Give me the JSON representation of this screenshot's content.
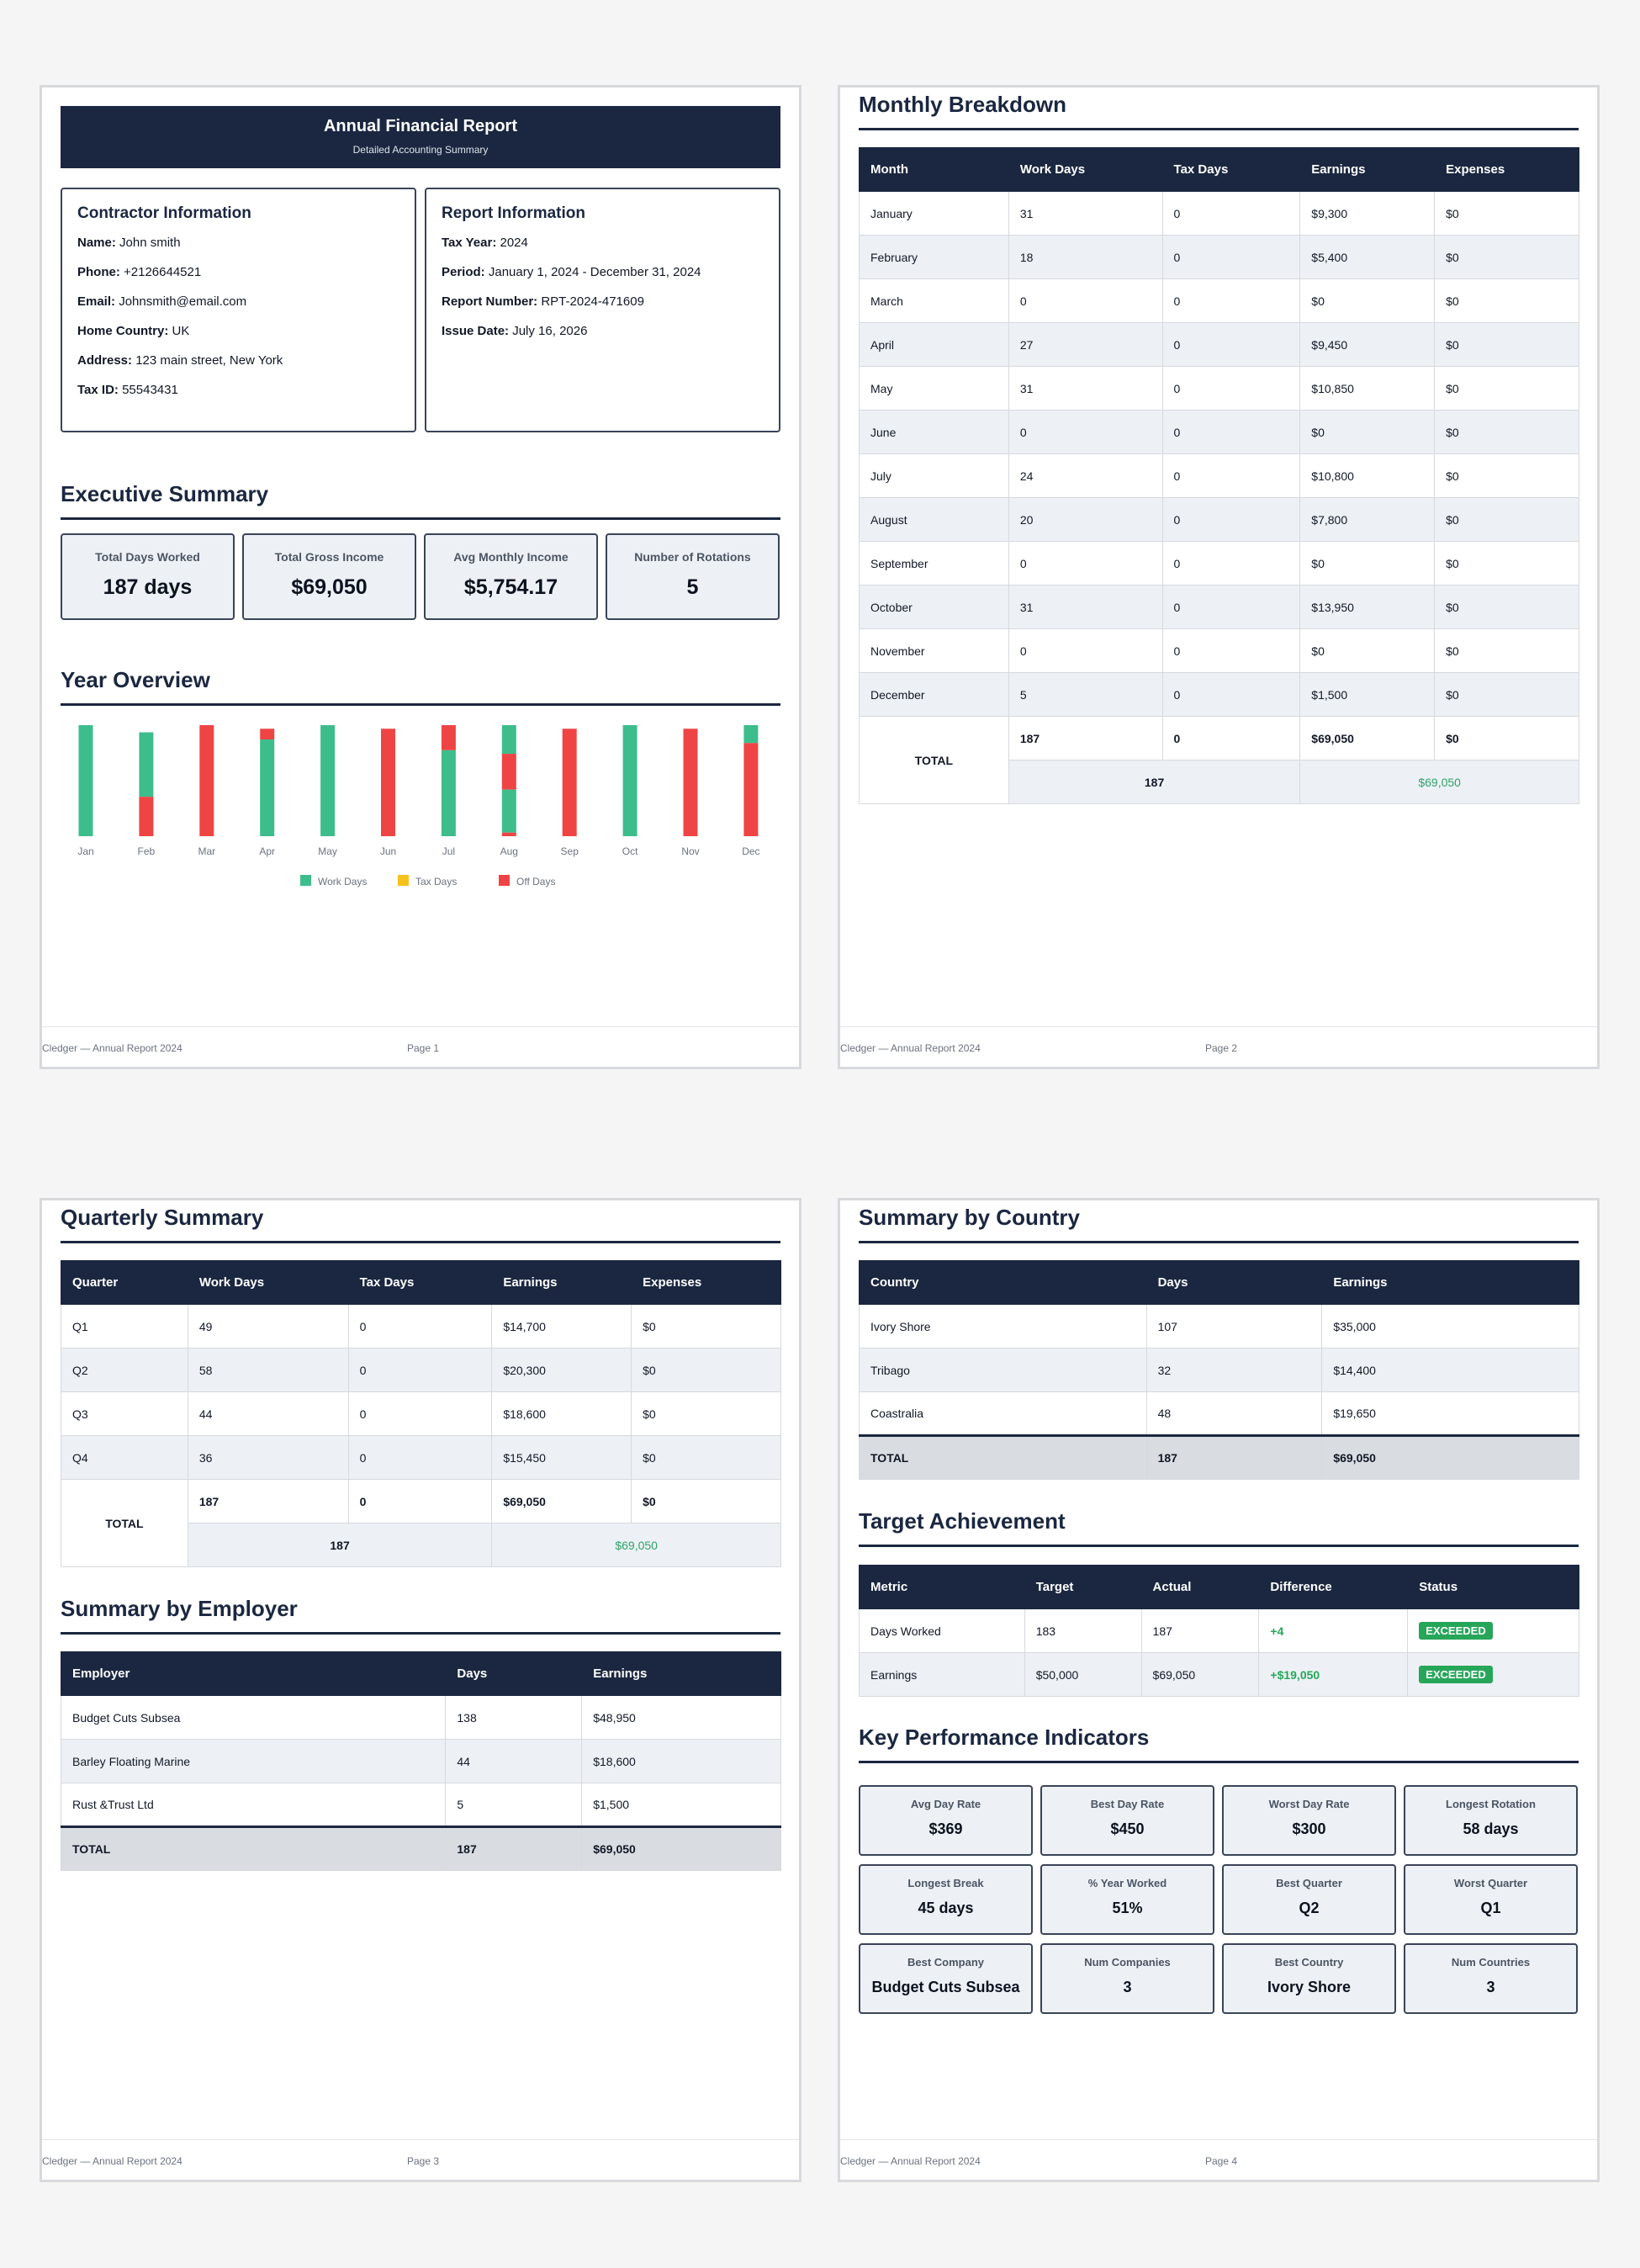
{
  "footer": {
    "brand": "Cledger — Annual Report 2024",
    "pages": [
      "Page 1",
      "Page 2",
      "Page 3",
      "Page 4"
    ]
  },
  "header": {
    "title": "Annual Financial Report",
    "subtitle": "Detailed Accounting Summary"
  },
  "contractor": {
    "title": "Contractor Information",
    "rows": [
      {
        "label": "Name:",
        "value": "John smith"
      },
      {
        "label": "Phone:",
        "value": "+2126644521"
      },
      {
        "label": "Email:",
        "value": "Johnsmith@email.com"
      },
      {
        "label": "Home Country:",
        "value": "UK"
      },
      {
        "label": "Address:",
        "value": "123 main street, New York"
      },
      {
        "label": "Tax ID:",
        "value": "55543431"
      }
    ]
  },
  "report": {
    "title": "Report Information",
    "rows": [
      {
        "label": "Tax Year:",
        "value": "2024"
      },
      {
        "label": "Period:",
        "value": "January 1, 2024 - December 31, 2024"
      },
      {
        "label": "Report Number:",
        "value": "RPT-2024-471609"
      },
      {
        "label": "Issue Date:",
        "value": "July 16, 2026"
      }
    ]
  },
  "executive": {
    "title": "Executive Summary",
    "cards": [
      {
        "label": "Total Days Worked",
        "value": "187 days"
      },
      {
        "label": "Total Gross Income",
        "value": "$69,050"
      },
      {
        "label": "Avg Monthly Income",
        "value": "$5,754.17"
      },
      {
        "label": "Number of Rotations",
        "value": "5"
      }
    ]
  },
  "overview": {
    "title": "Year Overview"
  },
  "chart_data": {
    "type": "bar",
    "stacked": true,
    "categories": [
      "Jan",
      "Feb",
      "Mar",
      "Apr",
      "May",
      "Jun",
      "Jul",
      "Aug",
      "Sep",
      "Oct",
      "Nov",
      "Dec"
    ],
    "segments": [
      [
        {
          "kind": "work",
          "days": 31
        }
      ],
      [
        {
          "kind": "work",
          "days": 18
        },
        {
          "kind": "off",
          "days": 11
        }
      ],
      [
        {
          "kind": "off",
          "days": 31
        }
      ],
      [
        {
          "kind": "off",
          "days": 3
        },
        {
          "kind": "work",
          "days": 27
        }
      ],
      [
        {
          "kind": "work",
          "days": 31
        }
      ],
      [
        {
          "kind": "off",
          "days": 30
        }
      ],
      [
        {
          "kind": "off",
          "days": 7
        },
        {
          "kind": "work",
          "days": 24
        }
      ],
      [
        {
          "kind": "work",
          "days": 8
        },
        {
          "kind": "off",
          "days": 10
        },
        {
          "kind": "work",
          "days": 12
        },
        {
          "kind": "off",
          "days": 1
        }
      ],
      [
        {
          "kind": "off",
          "days": 30
        }
      ],
      [
        {
          "kind": "work",
          "days": 31
        }
      ],
      [
        {
          "kind": "off",
          "days": 30
        }
      ],
      [
        {
          "kind": "work",
          "days": 5
        },
        {
          "kind": "off",
          "days": 26
        }
      ]
    ],
    "legend": [
      {
        "name": "Work Days",
        "color": "#3dbd8c"
      },
      {
        "name": "Tax Days",
        "color": "#f5c21b"
      },
      {
        "name": "Off Days",
        "color": "#ef4444"
      }
    ],
    "ylim": [
      0,
      31
    ],
    "legend_position": "bottom"
  },
  "monthly": {
    "title": "Monthly Breakdown",
    "headers": [
      "Month",
      "Work Days",
      "Tax Days",
      "Earnings",
      "Expenses"
    ],
    "rows": [
      [
        "January",
        "31",
        "0",
        "$9,300",
        "$0"
      ],
      [
        "February",
        "18",
        "0",
        "$5,400",
        "$0"
      ],
      [
        "March",
        "0",
        "0",
        "$0",
        "$0"
      ],
      [
        "April",
        "27",
        "0",
        "$9,450",
        "$0"
      ],
      [
        "May",
        "31",
        "0",
        "$10,850",
        "$0"
      ],
      [
        "June",
        "0",
        "0",
        "$0",
        "$0"
      ],
      [
        "July",
        "24",
        "0",
        "$10,800",
        "$0"
      ],
      [
        "August",
        "20",
        "0",
        "$7,800",
        "$0"
      ],
      [
        "September",
        "0",
        "0",
        "$0",
        "$0"
      ],
      [
        "October",
        "31",
        "0",
        "$13,950",
        "$0"
      ],
      [
        "November",
        "0",
        "0",
        "$0",
        "$0"
      ],
      [
        "December",
        "5",
        "0",
        "$1,500",
        "$0"
      ]
    ],
    "total": {
      "label": "TOTAL",
      "values": [
        "187",
        "0",
        "$69,050",
        "$0"
      ],
      "days": "187",
      "earnings": "$69,050"
    }
  },
  "quarterly": {
    "title": "Quarterly Summary",
    "headers": [
      "Quarter",
      "Work Days",
      "Tax Days",
      "Earnings",
      "Expenses"
    ],
    "rows": [
      [
        "Q1",
        "49",
        "0",
        "$14,700",
        "$0"
      ],
      [
        "Q2",
        "58",
        "0",
        "$20,300",
        "$0"
      ],
      [
        "Q3",
        "44",
        "0",
        "$18,600",
        "$0"
      ],
      [
        "Q4",
        "36",
        "0",
        "$15,450",
        "$0"
      ]
    ],
    "total": {
      "label": "TOTAL",
      "values": [
        "187",
        "0",
        "$69,050",
        "$0"
      ],
      "days": "187",
      "earnings": "$69,050"
    }
  },
  "employer": {
    "title": "Summary by Employer",
    "headers": [
      "Employer",
      "Days",
      "Earnings"
    ],
    "rows": [
      [
        "Budget Cuts Subsea",
        "138",
        "$48,950"
      ],
      [
        "Barley Floating Marine",
        "44",
        "$18,600"
      ],
      [
        "Rust &Trust Ltd",
        "5",
        "$1,500"
      ]
    ],
    "total": [
      "TOTAL",
      "187",
      "$69,050"
    ]
  },
  "country": {
    "title": "Summary by Country",
    "headers": [
      "Country",
      "Days",
      "Earnings"
    ],
    "rows": [
      [
        "Ivory Shore",
        "107",
        "$35,000"
      ],
      [
        "Tribago",
        "32",
        "$14,400"
      ],
      [
        "Coastralia",
        "48",
        "$19,650"
      ]
    ],
    "total": [
      "TOTAL",
      "187",
      "$69,050"
    ]
  },
  "target": {
    "title": "Target Achievement",
    "headers": [
      "Metric",
      "Target",
      "Actual",
      "Difference",
      "Status"
    ],
    "rows": [
      [
        "Days Worked",
        "183",
        "187",
        "+4",
        "EXCEEDED"
      ],
      [
        "Earnings",
        "$50,000",
        "$69,050",
        "+$19,050",
        "EXCEEDED"
      ]
    ]
  },
  "kpi": {
    "title": "Key Performance Indicators",
    "cards": [
      {
        "label": "Avg Day Rate",
        "value": "$369"
      },
      {
        "label": "Best Day Rate",
        "value": "$450"
      },
      {
        "label": "Worst Day Rate",
        "value": "$300"
      },
      {
        "label": "Longest Rotation",
        "value": "58 days"
      },
      {
        "label": "Longest Break",
        "value": "45 days"
      },
      {
        "label": "% Year Worked",
        "value": "51%"
      },
      {
        "label": "Best Quarter",
        "value": "Q2"
      },
      {
        "label": "Worst Quarter",
        "value": "Q1"
      },
      {
        "label": "Best Company",
        "value": "Budget Cuts Subsea"
      },
      {
        "label": "Num Companies",
        "value": "3"
      },
      {
        "label": "Best Country",
        "value": "Ivory Shore"
      },
      {
        "label": "Num Countries",
        "value": "3"
      }
    ]
  }
}
